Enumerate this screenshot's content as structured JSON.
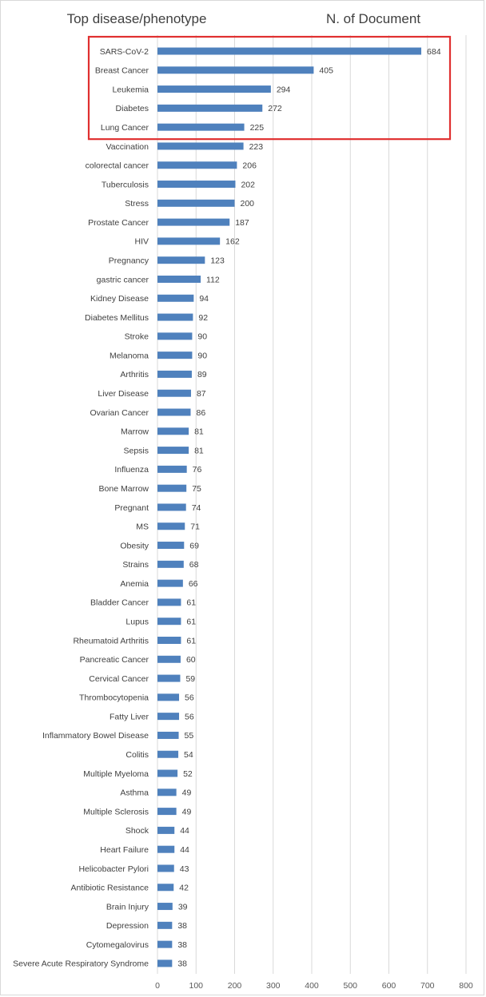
{
  "headers": {
    "left": "Top disease/phenotype",
    "right": "N. of Document"
  },
  "colors": {
    "bar": "#4f81bd",
    "grid": "#d9d9d9",
    "highlight_box": "#e03030",
    "text": "#404040"
  },
  "highlight": {
    "categories": [
      "SARS-CoV-2",
      "Breast Cancer",
      "Leukemia",
      "Diabetes",
      "Lung Cancer"
    ]
  },
  "chart_data": {
    "type": "bar",
    "orientation": "horizontal",
    "categories": [
      "SARS-CoV-2",
      "Breast Cancer",
      "Leukemia",
      "Diabetes",
      "Lung Cancer",
      "Vaccination",
      "colorectal cancer",
      "Tuberculosis",
      "Stress",
      "Prostate Cancer",
      "HIV",
      "Pregnancy",
      "gastric cancer",
      "Kidney Disease",
      "Diabetes Mellitus",
      "Stroke",
      "Melanoma",
      "Arthritis",
      "Liver Disease",
      "Ovarian Cancer",
      "Marrow",
      "Sepsis",
      "Influenza",
      "Bone Marrow",
      "Pregnant",
      "MS",
      "Obesity",
      "Strains",
      "Anemia",
      "Bladder Cancer",
      "Lupus",
      "Rheumatoid Arthritis",
      "Pancreatic Cancer",
      "Cervical Cancer",
      "Thrombocytopenia",
      "Fatty Liver",
      "Inflammatory Bowel Disease",
      "Colitis",
      "Multiple Myeloma",
      "Asthma",
      "Multiple Sclerosis",
      "Shock",
      "Heart Failure",
      "Helicobacter Pylori",
      "Antibiotic Resistance",
      "Brain Injury",
      "Depression",
      "Cytomegalovirus",
      "Severe Acute Respiratory Syndrome"
    ],
    "values": [
      684,
      405,
      294,
      272,
      225,
      223,
      206,
      202,
      200,
      187,
      162,
      123,
      112,
      94,
      92,
      90,
      90,
      89,
      87,
      86,
      81,
      81,
      76,
      75,
      74,
      71,
      69,
      68,
      66,
      61,
      61,
      61,
      60,
      59,
      56,
      56,
      55,
      54,
      52,
      49,
      49,
      44,
      44,
      43,
      42,
      39,
      38,
      38,
      38
    ],
    "xlim": [
      0,
      800
    ],
    "xticks": [
      0,
      100,
      200,
      300,
      400,
      500,
      600,
      700,
      800
    ],
    "data_labels": true,
    "grid": "vertical",
    "legend": "none"
  }
}
